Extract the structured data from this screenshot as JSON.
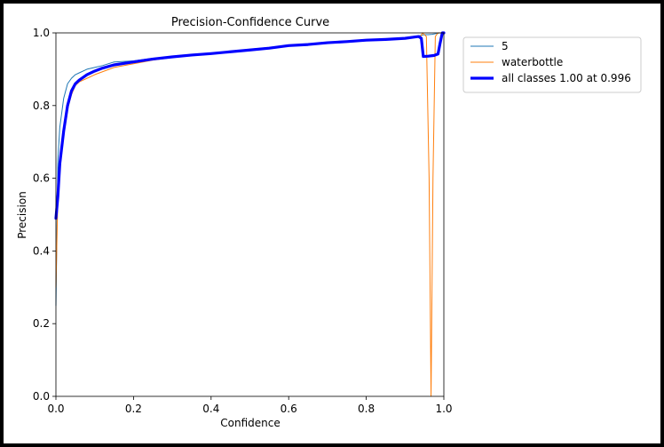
{
  "chart_data": {
    "type": "line",
    "title": "Precision-Confidence Curve",
    "xlabel": "Confidence",
    "ylabel": "Precision",
    "xlim": [
      0,
      1
    ],
    "ylim": [
      0,
      1
    ],
    "xticks": [
      "0.0",
      "0.2",
      "0.4",
      "0.6",
      "0.8",
      "1.0"
    ],
    "xtick_values": [
      0,
      0.2,
      0.4,
      0.6,
      0.8,
      1.0
    ],
    "yticks": [
      "0.0",
      "0.2",
      "0.4",
      "0.6",
      "0.8",
      "1.0"
    ],
    "ytick_values": [
      0,
      0.2,
      0.4,
      0.6,
      0.8,
      1.0
    ],
    "grid": false,
    "legend_position": "outside-top-right",
    "series": [
      {
        "name": "5",
        "color": "#1f77b4",
        "stroke": "thin",
        "points": [
          [
            0.0,
            0.25
          ],
          [
            0.005,
            0.65
          ],
          [
            0.01,
            0.74
          ],
          [
            0.02,
            0.82
          ],
          [
            0.03,
            0.86
          ],
          [
            0.04,
            0.875
          ],
          [
            0.05,
            0.885
          ],
          [
            0.06,
            0.89
          ],
          [
            0.08,
            0.9
          ],
          [
            0.1,
            0.905
          ],
          [
            0.12,
            0.91
          ],
          [
            0.15,
            0.92
          ],
          [
            0.2,
            0.923
          ],
          [
            0.25,
            0.93
          ],
          [
            0.3,
            0.935
          ],
          [
            0.35,
            0.94
          ],
          [
            0.4,
            0.943
          ],
          [
            0.45,
            0.948
          ],
          [
            0.5,
            0.955
          ],
          [
            0.55,
            0.96
          ],
          [
            0.6,
            0.965
          ],
          [
            0.65,
            0.97
          ],
          [
            0.7,
            0.973
          ],
          [
            0.75,
            0.977
          ],
          [
            0.8,
            0.98
          ],
          [
            0.85,
            0.983
          ],
          [
            0.9,
            0.987
          ],
          [
            0.92,
            0.99
          ],
          [
            0.93,
            0.99
          ],
          [
            0.94,
            0.993
          ],
          [
            0.95,
            0.995
          ],
          [
            0.96,
            0.995
          ],
          [
            0.97,
            0.996
          ],
          [
            0.98,
            0.998
          ],
          [
            0.99,
            1.0
          ],
          [
            1.0,
            1.0
          ]
        ]
      },
      {
        "name": "waterbottle",
        "color": "#ff7f0e",
        "stroke": "thin",
        "points": [
          [
            0.0,
            0.3
          ],
          [
            0.005,
            0.55
          ],
          [
            0.01,
            0.62
          ],
          [
            0.02,
            0.72
          ],
          [
            0.03,
            0.79
          ],
          [
            0.04,
            0.83
          ],
          [
            0.05,
            0.855
          ],
          [
            0.06,
            0.865
          ],
          [
            0.08,
            0.875
          ],
          [
            0.1,
            0.885
          ],
          [
            0.12,
            0.893
          ],
          [
            0.15,
            0.905
          ],
          [
            0.2,
            0.915
          ],
          [
            0.25,
            0.925
          ],
          [
            0.3,
            0.932
          ],
          [
            0.35,
            0.938
          ],
          [
            0.4,
            0.942
          ],
          [
            0.45,
            0.948
          ],
          [
            0.5,
            0.953
          ],
          [
            0.55,
            0.958
          ],
          [
            0.6,
            0.965
          ],
          [
            0.65,
            0.968
          ],
          [
            0.7,
            0.973
          ],
          [
            0.75,
            0.976
          ],
          [
            0.8,
            0.98
          ],
          [
            0.85,
            0.983
          ],
          [
            0.9,
            0.986
          ],
          [
            0.93,
            0.988
          ],
          [
            0.94,
            0.99
          ],
          [
            0.945,
            1.0
          ],
          [
            0.955,
            0.99
          ],
          [
            0.962,
            0.6
          ],
          [
            0.967,
            0.0
          ],
          [
            0.972,
            0.6
          ],
          [
            0.978,
            0.99
          ],
          [
            0.985,
            1.0
          ],
          [
            1.0,
            1.0
          ]
        ]
      },
      {
        "name": "all classes 1.00 at 0.996",
        "color": "#0000ff",
        "stroke": "thick",
        "points": [
          [
            0.0,
            0.49
          ],
          [
            0.005,
            0.55
          ],
          [
            0.01,
            0.64
          ],
          [
            0.02,
            0.73
          ],
          [
            0.03,
            0.8
          ],
          [
            0.04,
            0.84
          ],
          [
            0.05,
            0.86
          ],
          [
            0.06,
            0.87
          ],
          [
            0.08,
            0.885
          ],
          [
            0.1,
            0.895
          ],
          [
            0.12,
            0.903
          ],
          [
            0.15,
            0.912
          ],
          [
            0.2,
            0.92
          ],
          [
            0.25,
            0.928
          ],
          [
            0.3,
            0.934
          ],
          [
            0.35,
            0.939
          ],
          [
            0.4,
            0.943
          ],
          [
            0.45,
            0.948
          ],
          [
            0.5,
            0.953
          ],
          [
            0.55,
            0.958
          ],
          [
            0.6,
            0.965
          ],
          [
            0.65,
            0.968
          ],
          [
            0.7,
            0.973
          ],
          [
            0.75,
            0.976
          ],
          [
            0.8,
            0.98
          ],
          [
            0.85,
            0.982
          ],
          [
            0.9,
            0.985
          ],
          [
            0.92,
            0.988
          ],
          [
            0.935,
            0.99
          ],
          [
            0.942,
            0.985
          ],
          [
            0.947,
            0.935
          ],
          [
            0.96,
            0.936
          ],
          [
            0.975,
            0.938
          ],
          [
            0.985,
            0.942
          ],
          [
            0.99,
            0.97
          ],
          [
            0.996,
            1.0
          ],
          [
            1.0,
            1.0
          ]
        ]
      }
    ]
  }
}
